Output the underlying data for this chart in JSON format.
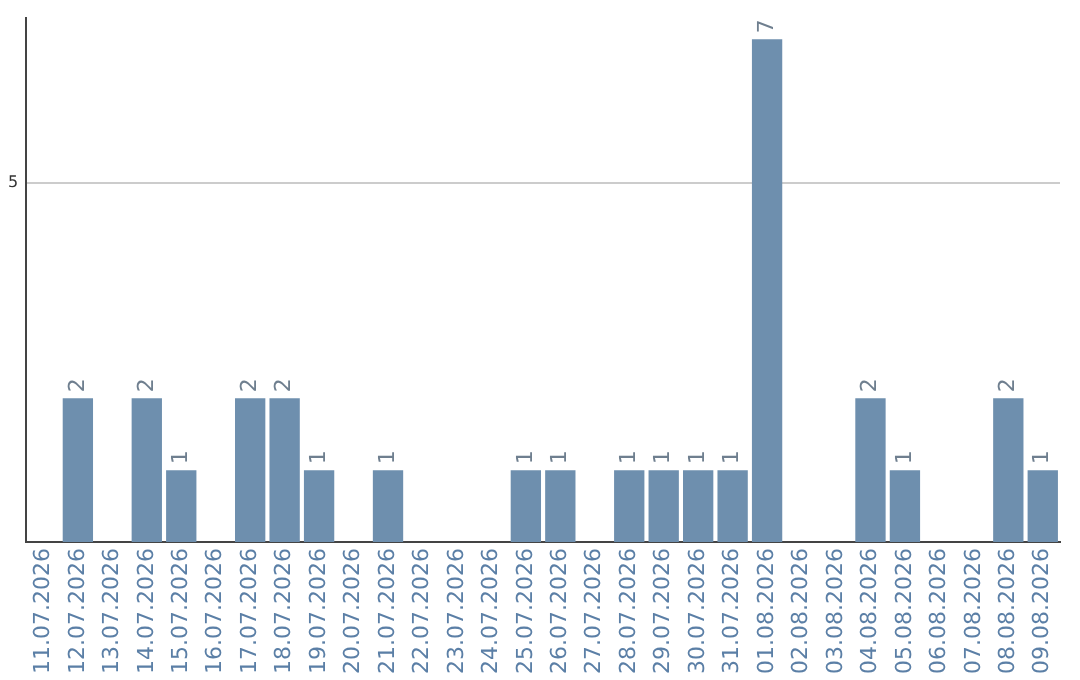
{
  "chart_data": {
    "type": "bar",
    "categories": [
      "11.07.2026",
      "12.07.2026",
      "13.07.2026",
      "14.07.2026",
      "15.07.2026",
      "16.07.2026",
      "17.07.2026",
      "18.07.2026",
      "19.07.2026",
      "20.07.2026",
      "21.07.2026",
      "22.07.2026",
      "23.07.2026",
      "24.07.2026",
      "25.07.2026",
      "26.07.2026",
      "27.07.2026",
      "28.07.2026",
      "29.07.2026",
      "30.07.2026",
      "31.07.2026",
      "01.08.2026",
      "02.08.2026",
      "03.08.2026",
      "04.08.2026",
      "05.08.2026",
      "06.08.2026",
      "07.08.2026",
      "08.08.2026",
      "09.08.2026"
    ],
    "values": [
      0,
      2,
      0,
      2,
      1,
      0,
      2,
      2,
      1,
      0,
      1,
      0,
      0,
      0,
      1,
      1,
      0,
      1,
      1,
      1,
      1,
      7,
      0,
      0,
      2,
      1,
      0,
      0,
      2,
      1
    ],
    "value_labels": [
      null,
      "2",
      null,
      "2",
      "1",
      null,
      "2",
      "2",
      "1",
      null,
      "1",
      null,
      null,
      null,
      "1",
      "1",
      null,
      "1",
      "1",
      "1",
      "1",
      "7",
      null,
      null,
      "2",
      "1",
      null,
      null,
      "2",
      "1"
    ],
    "color": "#6e8fae",
    "ylim": [
      0,
      7.3
    ],
    "yticks": [
      5
    ],
    "grid": "y",
    "legend": false
  }
}
